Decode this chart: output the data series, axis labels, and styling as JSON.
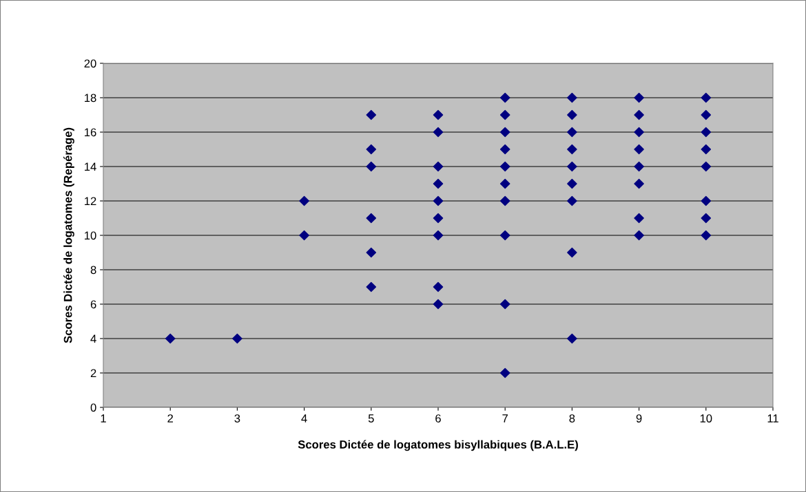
{
  "chart_data": {
    "type": "scatter",
    "xlabel": "Scores Dictée de logatomes bisyllabiques (B.A.L.E)",
    "ylabel": "Scores Dictée de logatomes (Repérage)",
    "series": [
      {
        "color": "#000080",
        "x": [
          2,
          3,
          4,
          4,
          5,
          5,
          5,
          5,
          5,
          5,
          6,
          6,
          6,
          6,
          6,
          6,
          6,
          6,
          6,
          7,
          7,
          7,
          7,
          7,
          7,
          7,
          7,
          7,
          7,
          8,
          8,
          8,
          8,
          8,
          8,
          8,
          8,
          8,
          9,
          9,
          9,
          9,
          9,
          9,
          9,
          9,
          10,
          10,
          10,
          10,
          10,
          10,
          10,
          10
        ],
        "values": [
          4,
          4,
          12,
          10,
          17,
          15,
          14,
          11,
          9,
          7,
          17,
          16,
          14,
          13,
          12,
          11,
          10,
          7,
          6,
          18,
          17,
          16,
          15,
          14,
          13,
          12,
          10,
          6,
          2,
          18,
          17,
          16,
          15,
          14,
          13,
          12,
          9,
          4,
          18,
          17,
          16,
          15,
          14,
          13,
          11,
          10,
          18,
          17,
          16,
          15,
          14,
          12,
          11,
          10
        ]
      }
    ],
    "xlim": [
      1,
      11
    ],
    "xticks": [
      1,
      2,
      3,
      4,
      5,
      6,
      7,
      8,
      9,
      10,
      11
    ],
    "ylim": [
      0,
      20
    ],
    "yticks": [
      0,
      2,
      4,
      6,
      8,
      10,
      12,
      14,
      16,
      18,
      20
    ],
    "grid": "y",
    "marker": "diamond",
    "legend": false
  }
}
